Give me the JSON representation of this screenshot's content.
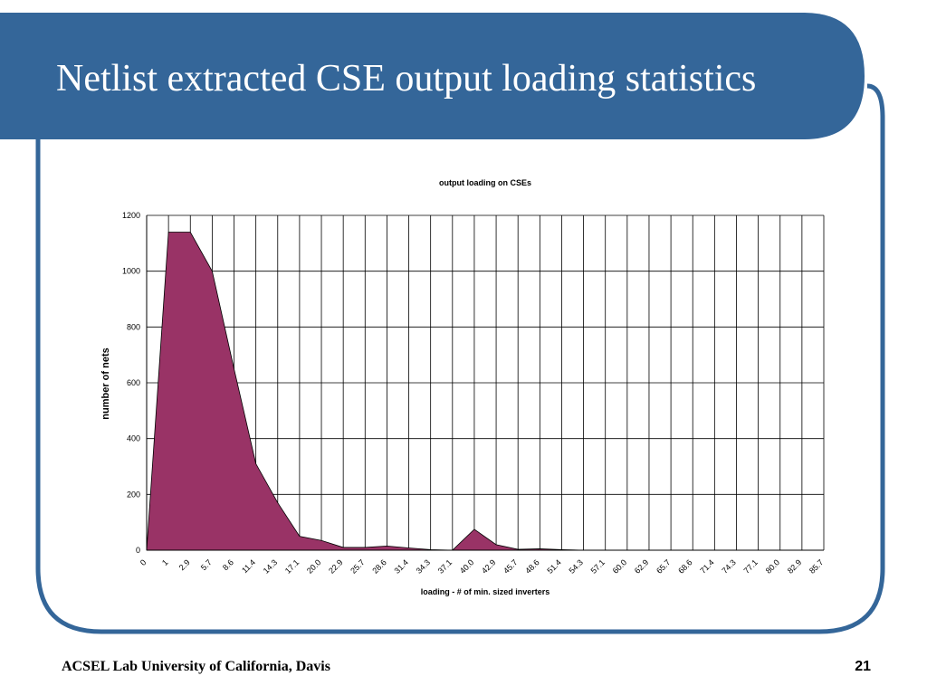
{
  "slide": {
    "title": "Netlist extracted CSE output loading statistics",
    "footer": "ACSEL Lab University of California, Davis",
    "page_number": "21",
    "colors": {
      "banner": "#346699",
      "frame": "#346699",
      "area_fill": "#993366"
    }
  },
  "chart_data": {
    "type": "area",
    "title": "output loading on CSEs",
    "xlabel": "loading - # of min. sized inverters",
    "ylabel": "number of nets",
    "ylim": [
      0,
      1200
    ],
    "yticks": [
      "0",
      "200",
      "400",
      "600",
      "800",
      "1000",
      "1200"
    ],
    "grid": true,
    "legend": "none",
    "categories": [
      "0",
      "1",
      "2.9",
      "5.7",
      "8.6",
      "11.4",
      "14.3",
      "17.1",
      "20.0",
      "22.9",
      "25.7",
      "28.6",
      "31.4",
      "34.3",
      "37.1",
      "40.0",
      "42.9",
      "45.7",
      "48.6",
      "51.4",
      "54.3",
      "57.1",
      "60.0",
      "62.9",
      "65.7",
      "68.6",
      "71.4",
      "74.3",
      "77.1",
      "80.0",
      "82.9",
      "85.7"
    ],
    "values": [
      0,
      1140,
      1140,
      1000,
      650,
      310,
      170,
      50,
      35,
      10,
      10,
      15,
      8,
      2,
      0,
      75,
      20,
      3,
      5,
      2,
      0,
      0,
      0,
      0,
      0,
      0,
      0,
      0,
      0,
      0,
      0,
      0
    ]
  }
}
